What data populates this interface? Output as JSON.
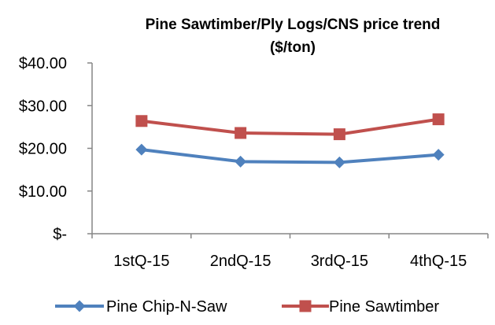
{
  "chart_data": {
    "type": "line",
    "title_line1": "Pine Sawtimber/Ply  Logs/CNS price trend",
    "title_line2": "($/ton)",
    "xlabel": "",
    "ylabel": "",
    "categories": [
      "1stQ-15",
      "2ndQ-15",
      "3rdQ-15",
      "4thQ-15"
    ],
    "ylim": [
      0,
      40
    ],
    "yticks": [
      0,
      10,
      20,
      30,
      40
    ],
    "ytick_labels": [
      "$-",
      "$10.00",
      "$20.00",
      "$30.00",
      "$40.00"
    ],
    "grid": false,
    "legend_position": "bottom",
    "series": [
      {
        "name": "Pine Chip-N-Saw",
        "values": [
          19.7,
          16.9,
          16.7,
          18.5
        ],
        "color": "#4f81bd",
        "marker": "diamond"
      },
      {
        "name": "Pine Sawtimber",
        "values": [
          26.4,
          23.6,
          23.3,
          26.8
        ],
        "color": "#c0504d",
        "marker": "square"
      }
    ]
  }
}
